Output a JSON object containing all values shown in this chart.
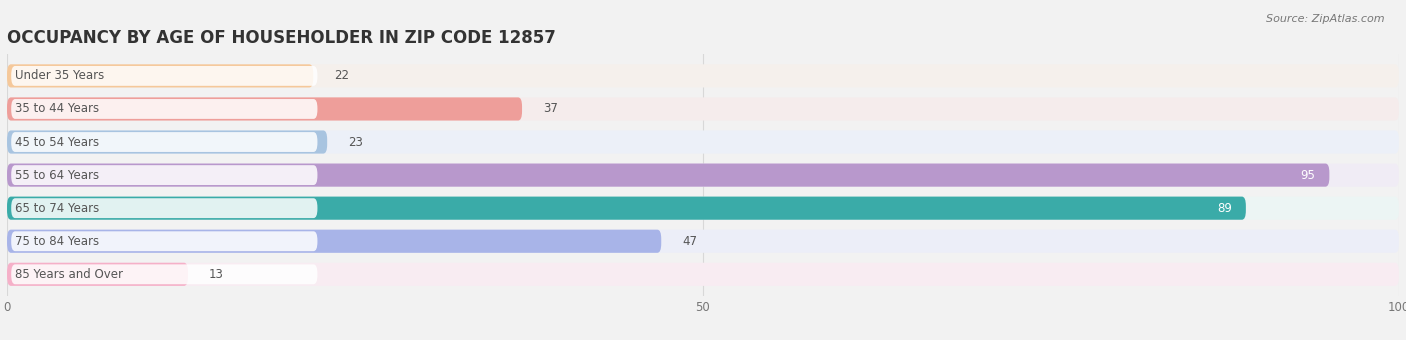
{
  "title": "OCCUPANCY BY AGE OF HOUSEHOLDER IN ZIP CODE 12857",
  "source": "Source: ZipAtlas.com",
  "categories": [
    "Under 35 Years",
    "35 to 44 Years",
    "45 to 54 Years",
    "55 to 64 Years",
    "65 to 74 Years",
    "75 to 84 Years",
    "85 Years and Over"
  ],
  "values": [
    22,
    37,
    23,
    95,
    89,
    47,
    13
  ],
  "bar_colors": [
    "#f5c89a",
    "#ee9e9a",
    "#a8c4e0",
    "#b898cc",
    "#3aaba8",
    "#a8b4e8",
    "#f5b0c8"
  ],
  "bar_bg_colors": [
    "#f5f0ec",
    "#f5ecec",
    "#ecf0f8",
    "#f0ecf5",
    "#ecf5f4",
    "#eceef8",
    "#f8ecf2"
  ],
  "label_bg_color": "#ffffff",
  "xlim": [
    0,
    100
  ],
  "xticks": [
    0,
    50,
    100
  ],
  "title_fontsize": 12,
  "label_fontsize": 8.5,
  "value_fontsize": 8.5,
  "background_color": "#f2f2f2",
  "grid_color": "#d8d8d8",
  "text_color": "#555555",
  "white": "#ffffff"
}
